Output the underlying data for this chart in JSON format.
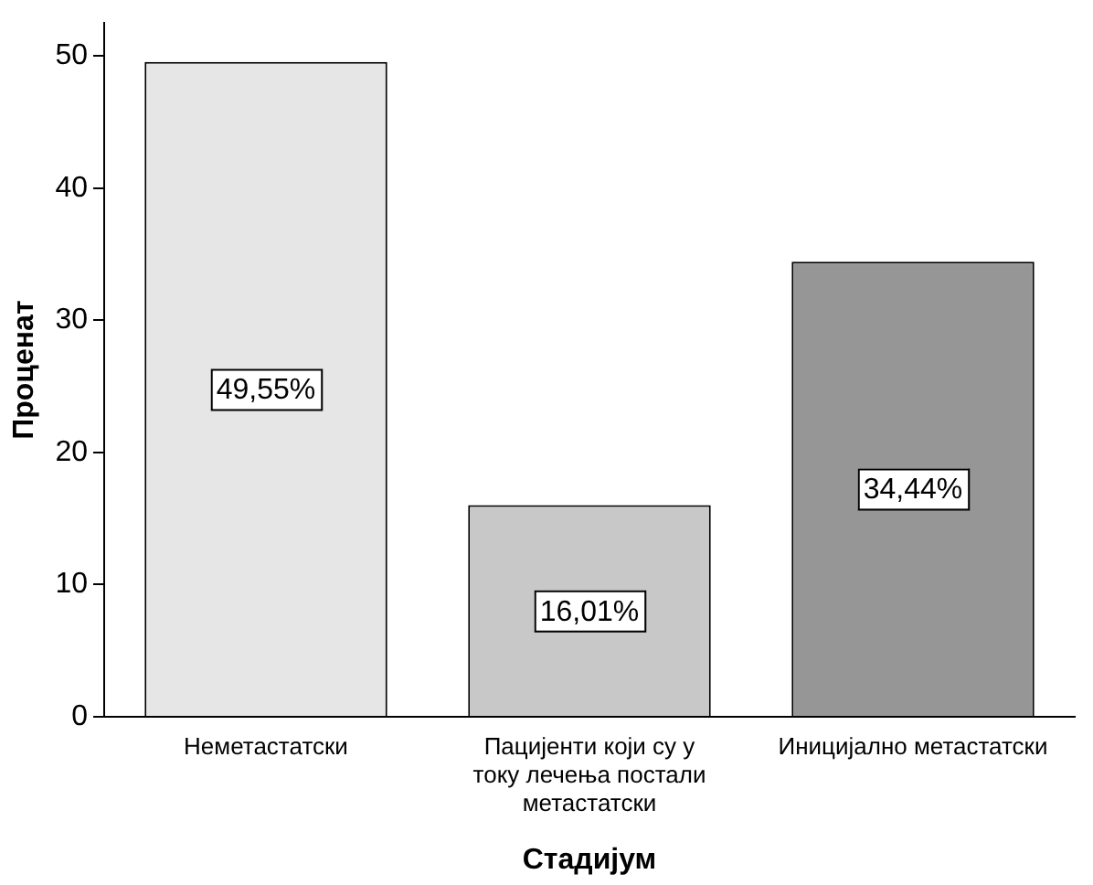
{
  "chart_data": {
    "type": "bar",
    "xlabel": "Стадијум",
    "ylabel": "Проценат",
    "categories": [
      "Неметастатски",
      "Пацијенти који су у току лечења постали метастатски",
      "Иницијално метастатски"
    ],
    "values": [
      49.55,
      16.01,
      34.44
    ],
    "colors": [
      "#e6e6e6",
      "#c8c8c8",
      "#969696"
    ],
    "value_labels": [
      "49,55%",
      "16,01%",
      "34,44%"
    ],
    "ylim": [
      0,
      52.5
    ],
    "yticks": [
      0,
      10,
      20,
      30,
      40,
      50
    ],
    "grid": false,
    "legend": false
  }
}
